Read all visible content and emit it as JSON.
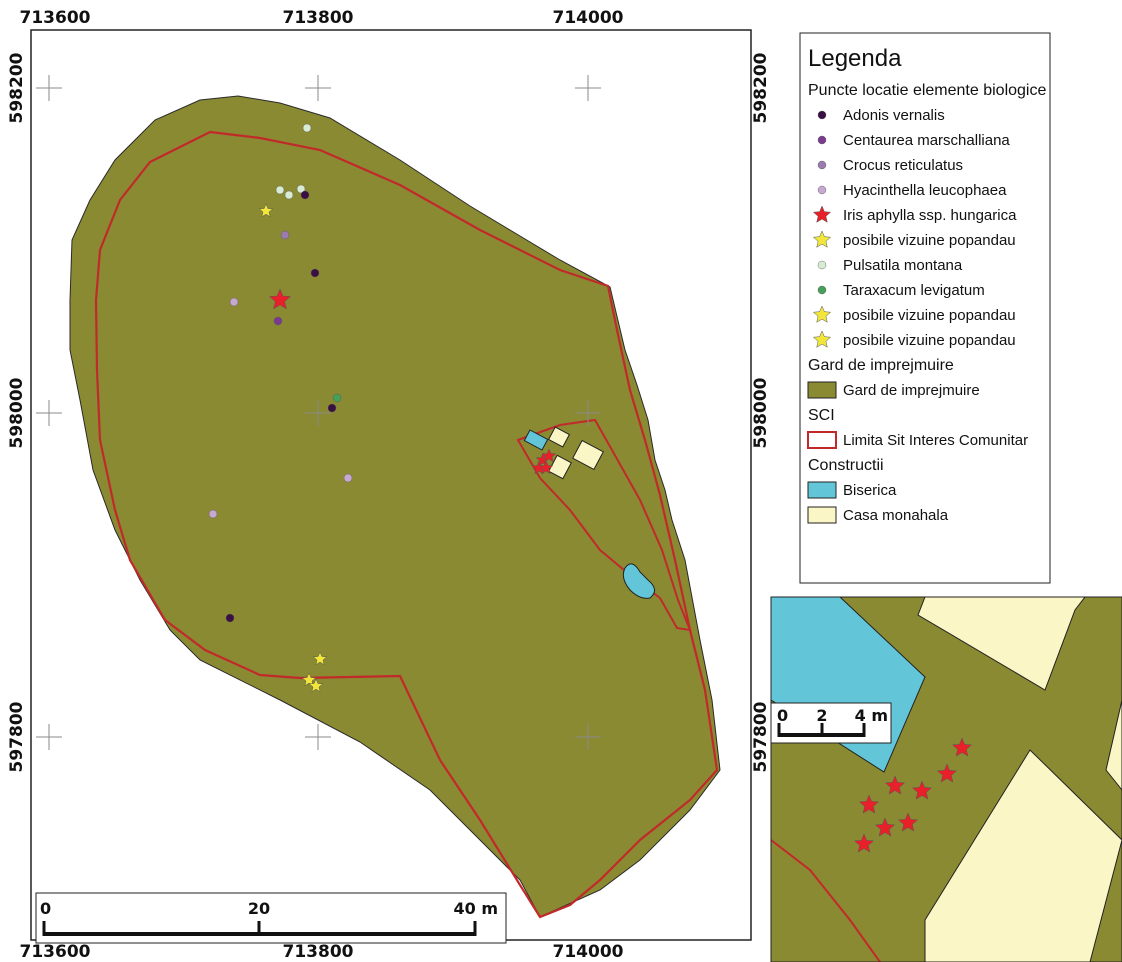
{
  "map": {
    "top_x_labels": [
      "713600",
      "713800",
      "714000"
    ],
    "bottom_x_labels": [
      "713600",
      "713800",
      "714000"
    ],
    "left_y_labels": [
      "598200",
      "598000",
      "597800"
    ],
    "right_y_labels": [
      "598200",
      "598000",
      "597800"
    ],
    "fill_color": "#8a8a33",
    "boundary_color": "#c12a2a"
  },
  "legend": {
    "title": "Legenda",
    "groups": [
      {
        "heading": "Puncte locatie elemente biologice",
        "items": [
          {
            "label": "Adonis vernalis",
            "symbol": "dot",
            "color": "#3a0f44"
          },
          {
            "label": "Centaurea marschalliana",
            "symbol": "dot",
            "color": "#7a3b8f"
          },
          {
            "label": "Crocus reticulatus",
            "symbol": "dot",
            "color": "#9c7bb0"
          },
          {
            "label": "Hyacinthella leucophaea",
            "symbol": "dot",
            "color": "#c7a8d1"
          },
          {
            "label": "Iris aphylla ssp. hungarica",
            "symbol": "star",
            "color": "#e8202a"
          },
          {
            "label": "posibile vizuine popandau",
            "symbol": "star",
            "color": "#f2e63a"
          },
          {
            "label": "Pulsatila montana",
            "symbol": "dot",
            "color": "#d8ecd4"
          },
          {
            "label": "Taraxacum levigatum",
            "symbol": "dot",
            "color": "#46a05a"
          },
          {
            "label": "posibile vizuine popandau",
            "symbol": "star",
            "color": "#f2e63a"
          },
          {
            "label": "posibile vizuine popandau",
            "symbol": "star",
            "color": "#f2e63a"
          }
        ]
      },
      {
        "heading": "Gard de imprejmuire",
        "items": [
          {
            "label": "Gard de imprejmuire",
            "symbol": "fill",
            "color": "#8a8a33"
          }
        ]
      },
      {
        "heading": "SCI",
        "items": [
          {
            "label": "Limita Sit Interes Comunitar",
            "symbol": "outline",
            "color": "#c12a2a"
          }
        ]
      },
      {
        "heading": "Constructii",
        "items": [
          {
            "label": "Biserica",
            "symbol": "fill",
            "color": "#62c6d8"
          },
          {
            "label": "Casa monahala",
            "symbol": "fill",
            "color": "#fbf6c6"
          }
        ]
      }
    ]
  },
  "scale_bar": {
    "labels": [
      "0",
      "20",
      "40 m"
    ]
  },
  "inset": {
    "scale_labels": [
      "0",
      "2",
      "4 m"
    ]
  }
}
